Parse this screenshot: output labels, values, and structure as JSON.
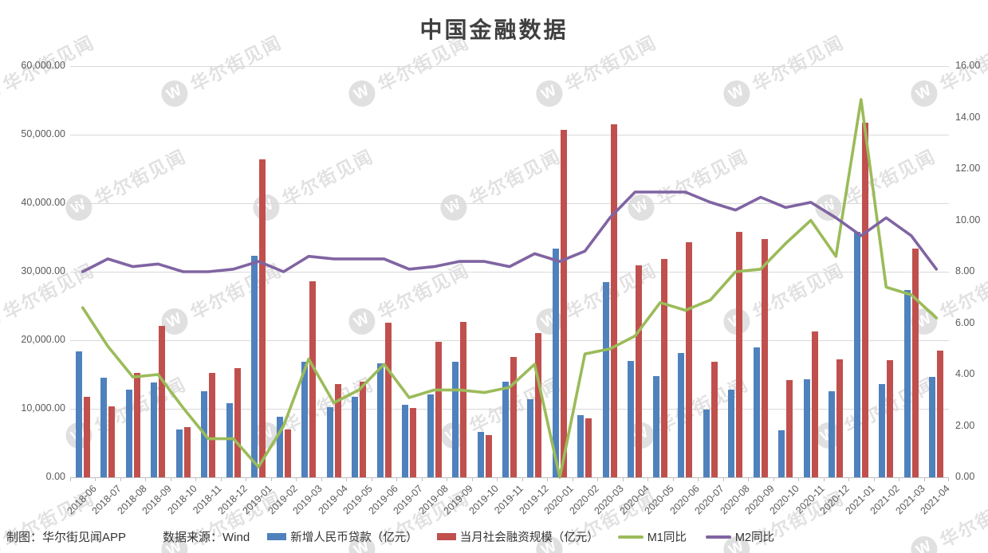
{
  "title": "中国金融数据",
  "watermark": {
    "text": "华尔街见闻",
    "logo_letter": "W"
  },
  "footer": {
    "credit": "制图：华尔街见闻APP",
    "source": "数据来源：Wind"
  },
  "legend": [
    {
      "label": "新增人民币贷款（亿元）",
      "color": "#4F81BD",
      "type": "bar"
    },
    {
      "label": "当月社会融资规模（亿元）",
      "color": "#C0504D",
      "type": "bar"
    },
    {
      "label": "M1同比",
      "color": "#9BBB59",
      "type": "line"
    },
    {
      "label": "M2同比",
      "color": "#8064A2",
      "type": "line"
    }
  ],
  "colors": {
    "grid": "#d9d9d9",
    "axis_line": "#bfbfbf",
    "tick_text": "#595959",
    "title_text": "#3f3f3f",
    "background": "#ffffff"
  },
  "chart_data": {
    "type": "bar",
    "subtype": "combo-bar-line-dual-axis",
    "title": "中国金融数据",
    "grid": true,
    "legend_position": "bottom",
    "categories": [
      "2018-06",
      "2018-07",
      "2018-08",
      "2018-09",
      "2018-10",
      "2018-11",
      "2018-12",
      "2019-01",
      "2019-02",
      "2019-03",
      "2019-04",
      "2019-05",
      "2019-06",
      "2019-07",
      "2019-08",
      "2019-09",
      "2019-10",
      "2019-11",
      "2019-12",
      "2020-01",
      "2020-02",
      "2020-03",
      "2020-04",
      "2020-05",
      "2020-06",
      "2020-07",
      "2020-08",
      "2020-09",
      "2020-10",
      "2020-11",
      "2020-12",
      "2021-01",
      "2021-02",
      "2021-03",
      "2021-04"
    ],
    "series": [
      {
        "name": "新增人民币贷款（亿元）",
        "type": "bar",
        "axis": "left",
        "color": "#4F81BD",
        "values": [
          18400,
          14500,
          12800,
          13800,
          6970,
          12500,
          10800,
          32300,
          8858,
          16900,
          10200,
          11800,
          16600,
          10600,
          12100,
          16900,
          6613,
          13900,
          11400,
          33400,
          9057,
          28500,
          17000,
          14800,
          18100,
          9927,
          12800,
          19000,
          6898,
          14300,
          12600,
          35800,
          13600,
          27300,
          14700
        ]
      },
      {
        "name": "当月社会融资规模（亿元）",
        "type": "bar",
        "axis": "left",
        "color": "#C0504D",
        "values": [
          11800,
          10400,
          15200,
          22100,
          7288,
          15200,
          15900,
          46400,
          7030,
          28600,
          13600,
          14000,
          22600,
          10100,
          19800,
          22700,
          6189,
          17500,
          21000,
          50700,
          8554,
          51500,
          30900,
          31900,
          34300,
          16900,
          35800,
          34800,
          14200,
          21300,
          17200,
          51700,
          17100,
          33400,
          18500
        ]
      },
      {
        "name": "M1同比",
        "type": "line",
        "axis": "right",
        "color": "#9BBB59",
        "values": [
          6.6,
          5.1,
          3.9,
          4.0,
          2.7,
          1.5,
          1.5,
          0.4,
          2.0,
          4.6,
          2.9,
          3.4,
          4.4,
          3.1,
          3.4,
          3.4,
          3.3,
          3.5,
          4.4,
          0.0,
          4.8,
          5.0,
          5.5,
          6.8,
          6.5,
          6.9,
          8.0,
          8.1,
          9.1,
          10.0,
          8.6,
          14.7,
          7.4,
          7.1,
          6.2
        ]
      },
      {
        "name": "M2同比",
        "type": "line",
        "axis": "right",
        "color": "#8064A2",
        "values": [
          8.0,
          8.5,
          8.2,
          8.3,
          8.0,
          8.0,
          8.1,
          8.4,
          8.0,
          8.6,
          8.5,
          8.5,
          8.5,
          8.1,
          8.2,
          8.4,
          8.4,
          8.2,
          8.7,
          8.4,
          8.8,
          10.1,
          11.1,
          11.1,
          11.1,
          10.7,
          10.4,
          10.9,
          10.5,
          10.7,
          10.1,
          9.4,
          10.1,
          9.4,
          8.1
        ]
      }
    ],
    "left_axis": {
      "min": 0,
      "max": 60000,
      "step": 10000,
      "tick_labels": [
        "0.00",
        "10,000.00",
        "20,000.00",
        "30,000.00",
        "40,000.00",
        "50,000.00",
        "60,000.00"
      ]
    },
    "right_axis": {
      "min": 0,
      "max": 16,
      "step": 2,
      "tick_labels": [
        "0.00",
        "2.00",
        "4.00",
        "6.00",
        "8.00",
        "10.00",
        "12.00",
        "14.00",
        "16.00"
      ]
    }
  }
}
